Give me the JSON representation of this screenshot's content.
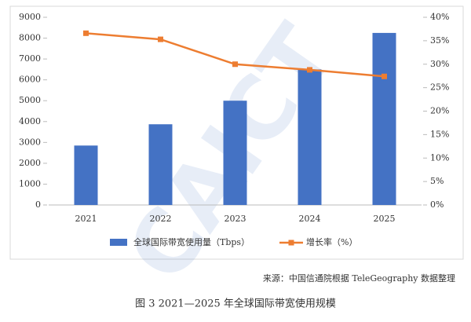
{
  "chart_data": {
    "type": "bar-line",
    "categories": [
      "2021",
      "2022",
      "2023",
      "2024",
      "2025"
    ],
    "series": [
      {
        "name": "全球国际带宽使用量（Tbps）",
        "type": "bar",
        "color": "#4472c4",
        "values": [
          2850,
          3870,
          5000,
          6500,
          8250
        ]
      },
      {
        "name": "增长率（%）",
        "type": "line",
        "axis": "y2",
        "color": "#ed7d31",
        "values": [
          36.6,
          35.3,
          30.0,
          28.8,
          27.4
        ]
      }
    ],
    "ylim": [
      0,
      9000
    ],
    "yticks": [
      0,
      1000,
      2000,
      3000,
      4000,
      5000,
      6000,
      7000,
      8000,
      9000
    ],
    "y2lim": [
      0,
      40
    ],
    "y2ticks": [
      {
        "value": 0,
        "label": "0%"
      },
      {
        "value": 5,
        "label": "5%"
      },
      {
        "value": 10,
        "label": "10%"
      },
      {
        "value": 15,
        "label": "15%"
      },
      {
        "value": 20,
        "label": "20%"
      },
      {
        "value": 25,
        "label": "25%"
      },
      {
        "value": 30,
        "label": "30%"
      },
      {
        "value": 35,
        "label": "35%"
      },
      {
        "value": 40,
        "label": "40%"
      }
    ],
    "legend": "bottom",
    "watermark": "CAICT",
    "source": "来源：中国信通院根据 TeleGeography 数据整理",
    "caption": "图 3 2021—2025 年全球国际带宽使用规模"
  }
}
